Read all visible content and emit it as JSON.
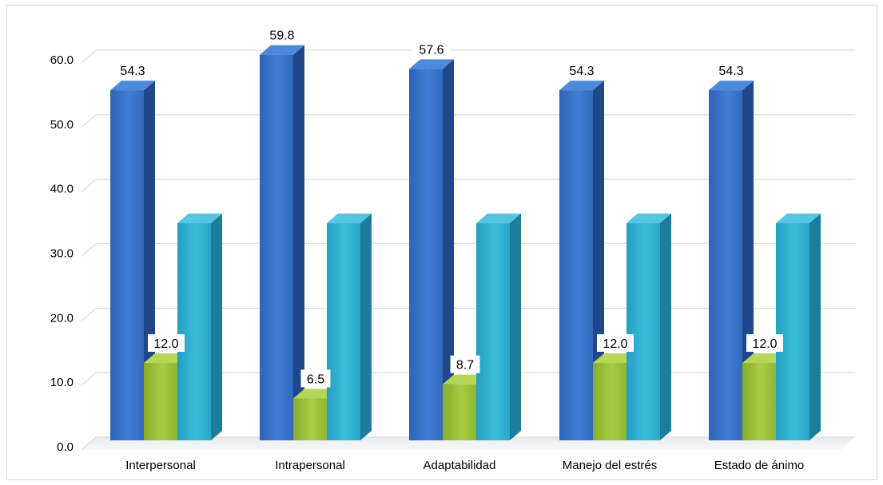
{
  "chart_data": {
    "type": "bar",
    "categories": [
      "Interpersonal",
      "Intrapersonal",
      "Adaptabilidad",
      "Manejo del estrés",
      "Estado de ánimo"
    ],
    "series": [
      {
        "values": [
          54.3,
          59.8,
          57.6,
          54.3,
          54.3
        ],
        "color": "#3b74c9",
        "data_labels": true
      },
      {
        "values": [
          12.0,
          6.5,
          8.7,
          12.0,
          12.0
        ],
        "color": "#9cc33b",
        "data_labels": true
      },
      {
        "values": [
          33.7,
          33.7,
          33.7,
          33.7,
          33.7
        ],
        "color": "#2fb0d2",
        "data_labels": false
      }
    ],
    "ylim": [
      0,
      60
    ],
    "yticks": [
      "0.0",
      "10.0",
      "20.0",
      "30.0",
      "40.0",
      "50.0",
      "60.0"
    ],
    "grid": true,
    "style": "3d-columns"
  }
}
